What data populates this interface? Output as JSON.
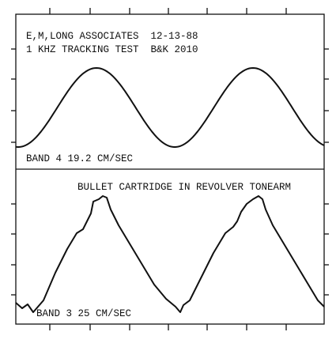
{
  "header": {
    "line1": "E,M,LONG ASSOCIATES  12-13-88",
    "line2": "1 KHZ TRACKING TEST  B&K 2010"
  },
  "upper_panel": {
    "label": "BAND 4 19.2 CM/SEC"
  },
  "lower_panel": {
    "title": "BULLET CARTRIDGE IN REVOLVER TONEARM",
    "label": "BAND 3 25 CM/SEC"
  }
}
